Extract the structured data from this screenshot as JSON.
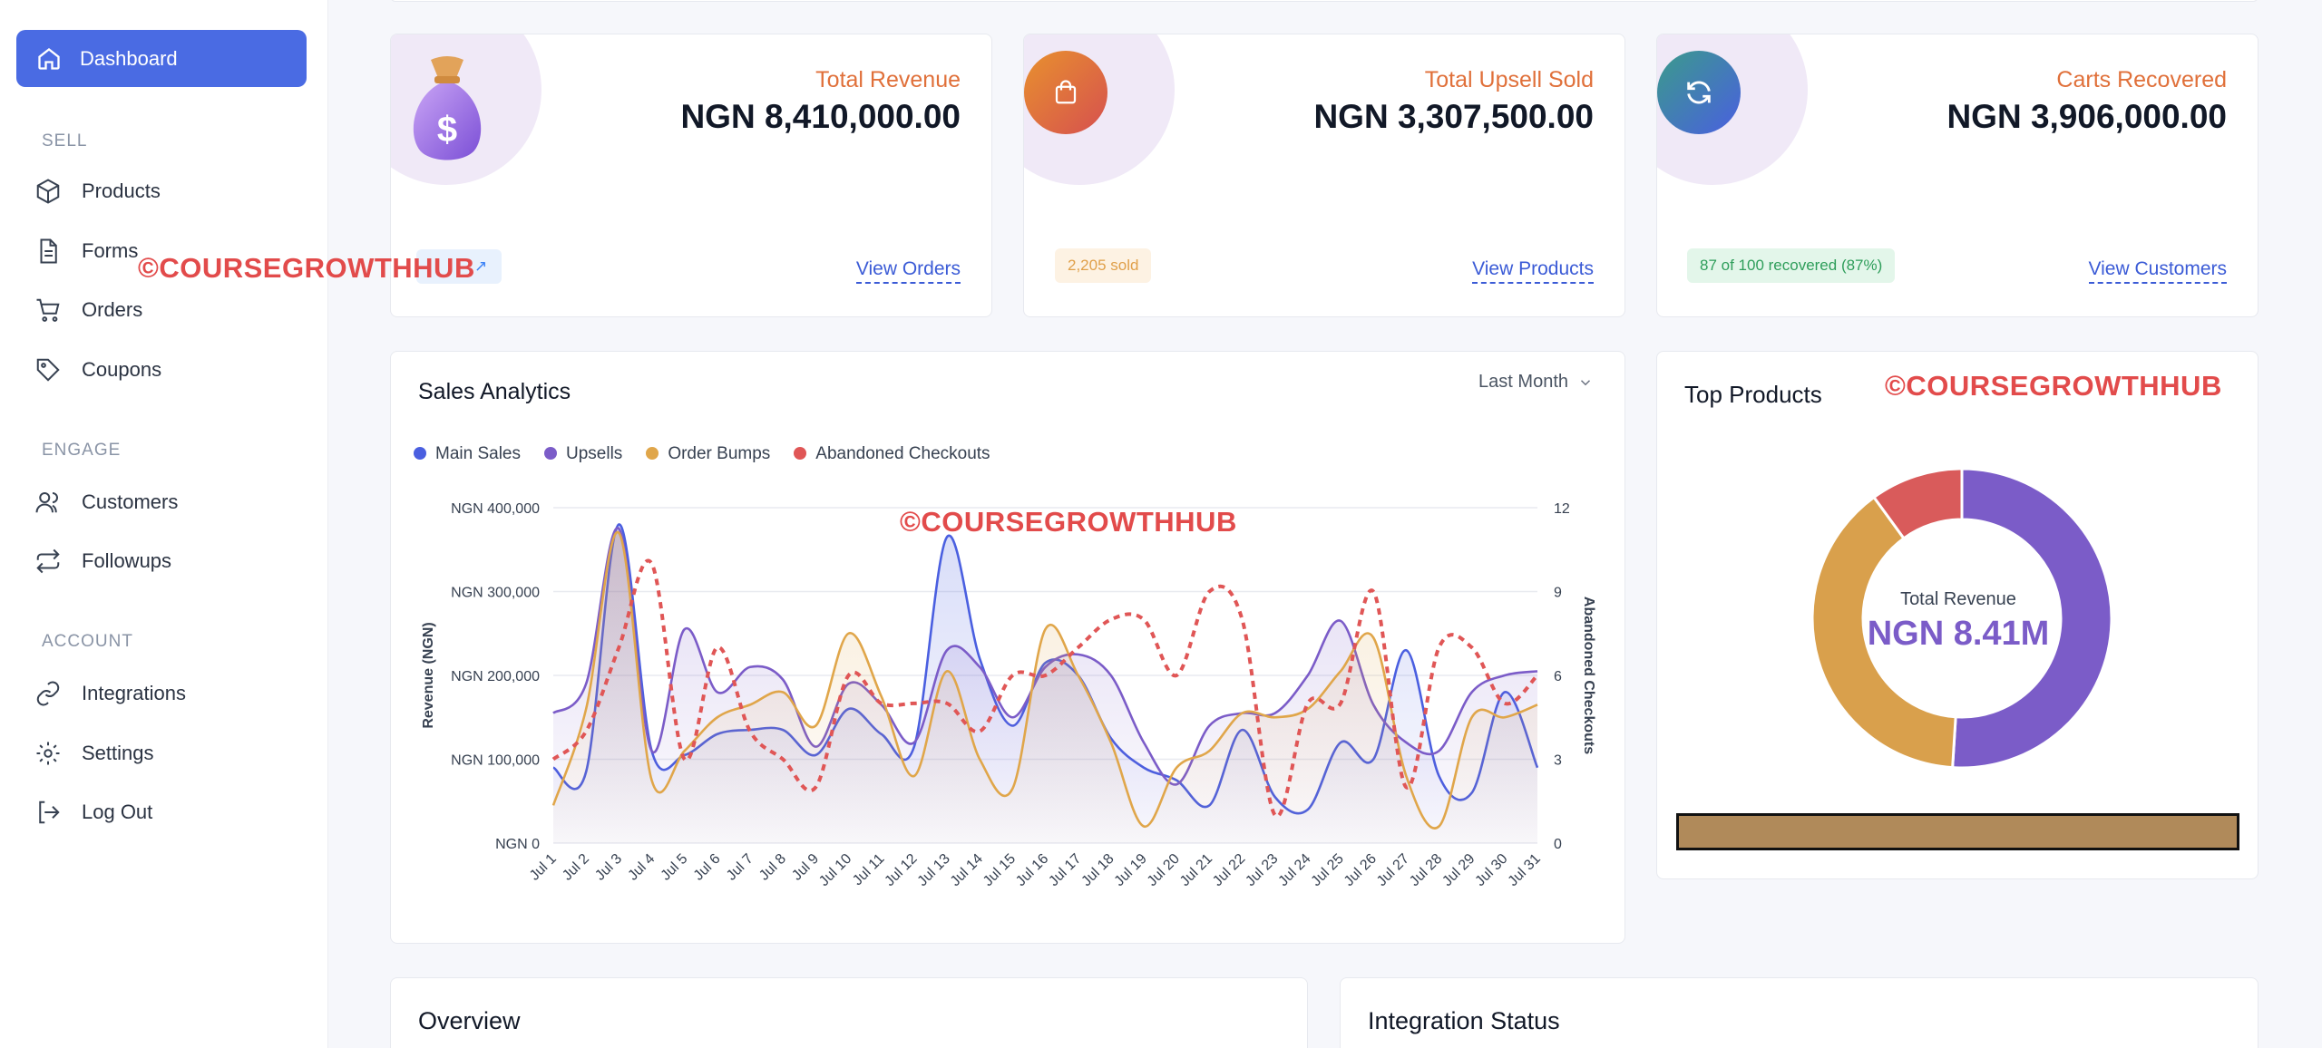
{
  "sidebar": {
    "active": "Dashboard",
    "sections": {
      "sell": "SELL",
      "engage": "ENGAGE",
      "account": "ACCOUNT"
    },
    "items": [
      {
        "label": "Products",
        "icon": "box-icon"
      },
      {
        "label": "Forms",
        "icon": "document-icon"
      },
      {
        "label": "Orders",
        "icon": "cart-icon"
      },
      {
        "label": "Coupons",
        "icon": "tag-icon"
      },
      {
        "label": "Customers",
        "icon": "users-icon"
      },
      {
        "label": "Followups",
        "icon": "repeat-icon"
      },
      {
        "label": "Integrations",
        "icon": "link-icon"
      },
      {
        "label": "Settings",
        "icon": "gear-icon"
      },
      {
        "label": "Log Out",
        "icon": "logout-icon"
      }
    ]
  },
  "watermark": "©COURSEGROWTHHUB",
  "stats": [
    {
      "label": "Total Revenue",
      "value": "NGN 8,410,000.00",
      "link": "View Orders"
    },
    {
      "label": "Total Upsell Sold",
      "value": "NGN 3,307,500.00",
      "pill": "2,205 sold",
      "link": "View Products"
    },
    {
      "label": "Carts Recovered",
      "value": "NGN 3,906,000.00",
      "pill": "87 of 100 recovered (87%)",
      "link": "View Customers"
    }
  ],
  "analytics": {
    "title": "Sales Analytics",
    "period": "Last Month",
    "legend": [
      "Main Sales",
      "Upsells",
      "Order Bumps",
      "Abandoned Checkouts"
    ]
  },
  "chart_data": {
    "type": "line",
    "categories": [
      "Jul 1",
      "Jul 2",
      "Jul 3",
      "Jul 4",
      "Jul 5",
      "Jul 6",
      "Jul 7",
      "Jul 8",
      "Jul 9",
      "Jul 10",
      "Jul 11",
      "Jul 12",
      "Jul 13",
      "Jul 14",
      "Jul 15",
      "Jul 16",
      "Jul 17",
      "Jul 18",
      "Jul 19",
      "Jul 20",
      "Jul 21",
      "Jul 22",
      "Jul 23",
      "Jul 24",
      "Jul 25",
      "Jul 26",
      "Jul 27",
      "Jul 28",
      "Jul 29",
      "Jul 30",
      "Jul 31"
    ],
    "ylabel": "Revenue (NGN)",
    "y2label": "Abandoned Checkouts",
    "yticks": [
      "NGN 0",
      "NGN 100,000",
      "NGN 200,000",
      "NGN 300,000",
      "NGN 400,000"
    ],
    "y2ticks": [
      "0",
      "3",
      "6",
      "9",
      "12"
    ],
    "ylim": [
      0,
      400000
    ],
    "y2lim": [
      0,
      12
    ],
    "series": [
      {
        "name": "Main Sales",
        "color": "#4a5fe0",
        "axis": "left",
        "values": [
          90000,
          85000,
          380000,
          110000,
          105000,
          130000,
          135000,
          135000,
          105000,
          160000,
          130000,
          115000,
          365000,
          220000,
          140000,
          215000,
          200000,
          125000,
          90000,
          75000,
          45000,
          135000,
          55000,
          40000,
          120000,
          100000,
          230000,
          80000,
          60000,
          180000,
          90000
        ]
      },
      {
        "name": "Upsells",
        "color": "#7b5cc8",
        "axis": "left",
        "values": [
          155000,
          190000,
          375000,
          110000,
          255000,
          180000,
          210000,
          195000,
          115000,
          190000,
          165000,
          120000,
          230000,
          210000,
          150000,
          210000,
          225000,
          200000,
          120000,
          70000,
          140000,
          155000,
          155000,
          200000,
          265000,
          165000,
          120000,
          110000,
          180000,
          200000,
          205000
        ]
      },
      {
        "name": "Order Bumps",
        "color": "#e0a64a",
        "axis": "left",
        "values": [
          45000,
          160000,
          370000,
          75000,
          110000,
          150000,
          165000,
          180000,
          140000,
          250000,
          175000,
          80000,
          205000,
          100000,
          65000,
          255000,
          200000,
          120000,
          20000,
          90000,
          110000,
          155000,
          150000,
          160000,
          205000,
          245000,
          80000,
          20000,
          150000,
          150000,
          165000
        ]
      },
      {
        "name": "Abandoned Checkouts",
        "color": "#e05656",
        "axis": "right",
        "dashed": true,
        "values": [
          3,
          4,
          7,
          10,
          3,
          7,
          4,
          3,
          2,
          6,
          5,
          5,
          5,
          4,
          6,
          6,
          7,
          8,
          8,
          6,
          9,
          8,
          1,
          5,
          5,
          9,
          2,
          7,
          7,
          5,
          6
        ]
      }
    ],
    "grid": true,
    "legend_position": "top-left"
  },
  "top_products": {
    "title": "Top Products",
    "center_label": "Total Revenue",
    "center_value": "NGN 8.41M",
    "chart_data": {
      "type": "pie",
      "values": [
        0.51,
        0.39,
        0.1
      ],
      "colors": [
        "#7b5cc8",
        "#d9a04c",
        "#d95b5b"
      ]
    }
  },
  "bottom": {
    "overview": "Overview",
    "integration": "Integration Status"
  },
  "colors": {
    "accent": "#4a6be3",
    "orange": "#e0703a",
    "link": "#3b5bd6"
  }
}
